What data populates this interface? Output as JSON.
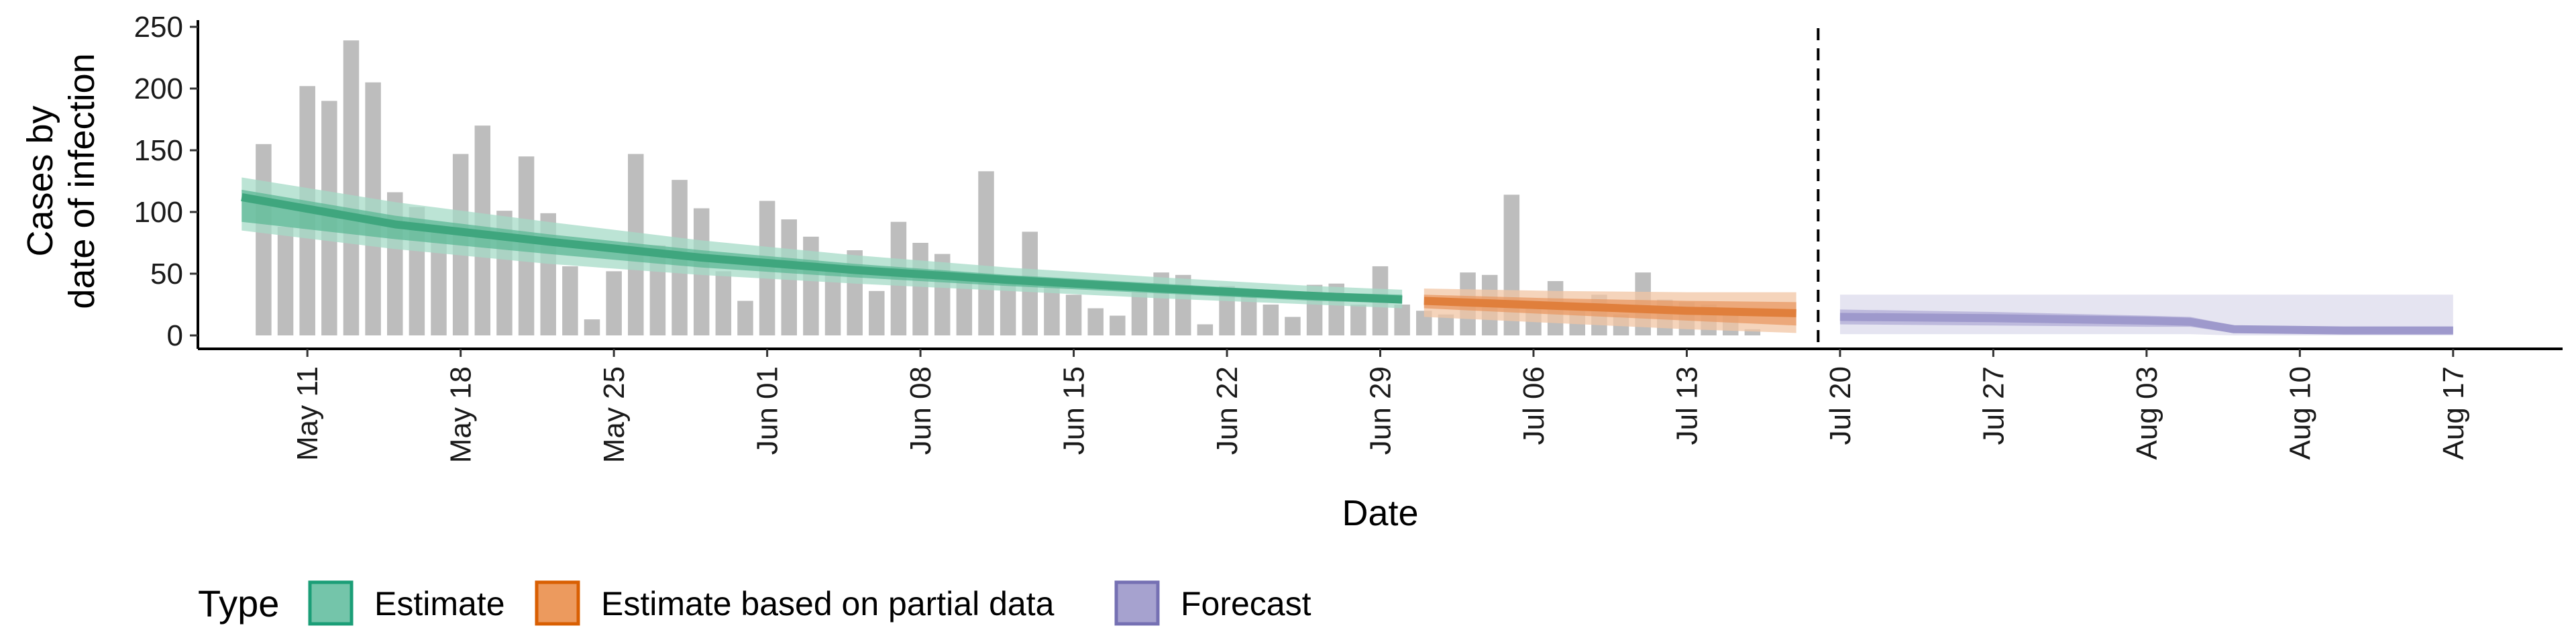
{
  "chart_data": {
    "type": "bar",
    "xlabel": "Date",
    "ylabel": [
      "Cases by",
      "date of infection"
    ],
    "ylim": [
      0,
      250
    ],
    "yticks": [
      0,
      50,
      100,
      150,
      200,
      250
    ],
    "xlim": [
      "2020-05-06",
      "2020-08-22"
    ],
    "xticks": [
      {
        "date": "2020-05-11",
        "label": "May 11"
      },
      {
        "date": "2020-05-18",
        "label": "May 18"
      },
      {
        "date": "2020-05-25",
        "label": "May 25"
      },
      {
        "date": "2020-06-01",
        "label": "Jun 01"
      },
      {
        "date": "2020-06-08",
        "label": "Jun 08"
      },
      {
        "date": "2020-06-15",
        "label": "Jun 15"
      },
      {
        "date": "2020-06-22",
        "label": "Jun 22"
      },
      {
        "date": "2020-06-29",
        "label": "Jun 29"
      },
      {
        "date": "2020-07-06",
        "label": "Jul 06"
      },
      {
        "date": "2020-07-13",
        "label": "Jul 13"
      },
      {
        "date": "2020-07-20",
        "label": "Jul 20"
      },
      {
        "date": "2020-07-27",
        "label": "Jul 27"
      },
      {
        "date": "2020-08-03",
        "label": "Aug 03"
      },
      {
        "date": "2020-08-10",
        "label": "Aug 10"
      },
      {
        "date": "2020-08-17",
        "label": "Aug 17"
      }
    ],
    "vline_date": "2020-07-19",
    "bars": {
      "start_date": "2020-05-09",
      "color": "#bdbdbd",
      "values": [
        155,
        88,
        202,
        190,
        239,
        205,
        116,
        104,
        83,
        147,
        170,
        101,
        145,
        99,
        56,
        13,
        52,
        147,
        73,
        126,
        103,
        52,
        28,
        109,
        94,
        80,
        56,
        69,
        36,
        92,
        75,
        66,
        50,
        133,
        48,
        84,
        40,
        33,
        22,
        16,
        35,
        51,
        49,
        9,
        40,
        32,
        25,
        15,
        41,
        42,
        25,
        56,
        25,
        20,
        17,
        51,
        49,
        114,
        28,
        44,
        20,
        33,
        17,
        51,
        29,
        27,
        25,
        18,
        5
      ]
    },
    "series": [
      {
        "name": "Estimate",
        "color": "#1b9e77",
        "legend_fill": "#74c5aa",
        "band_colors": [
          "#a6dbc7",
          "#5eb896"
        ],
        "line_color": "#3fa67e",
        "points": [
          {
            "x": "2020-05-08",
            "median": 112,
            "lo50": 92,
            "hi50": 118,
            "lo90": 85,
            "hi90": 128
          },
          {
            "x": "2020-05-15",
            "median": 90,
            "lo50": 78,
            "hi50": 97,
            "lo90": 70,
            "hi90": 108
          },
          {
            "x": "2020-05-22",
            "median": 76,
            "lo50": 66,
            "hi50": 82,
            "lo90": 58,
            "hi90": 92
          },
          {
            "x": "2020-05-29",
            "median": 63,
            "lo50": 55,
            "hi50": 69,
            "lo90": 49,
            "hi90": 77
          },
          {
            "x": "2020-06-05",
            "median": 53,
            "lo50": 47,
            "hi50": 58,
            "lo90": 42,
            "hi90": 65
          },
          {
            "x": "2020-06-12",
            "median": 45,
            "lo50": 40,
            "hi50": 49,
            "lo90": 36,
            "hi90": 55
          },
          {
            "x": "2020-06-19",
            "median": 38,
            "lo50": 34,
            "hi50": 42,
            "lo90": 30,
            "hi90": 47
          },
          {
            "x": "2020-06-26",
            "median": 32,
            "lo50": 28,
            "hi50": 35,
            "lo90": 25,
            "hi90": 40
          },
          {
            "x": "2020-06-30",
            "median": 29,
            "lo50": 26,
            "hi50": 33,
            "lo90": 22,
            "hi90": 37
          }
        ]
      },
      {
        "name": "Estimate based on partial data",
        "color": "#d95f02",
        "legend_fill": "#ec9a5e",
        "band_colors": [
          "#f2c6a4",
          "#e89a64"
        ],
        "line_color": "#e07f3c",
        "points": [
          {
            "x": "2020-07-01",
            "median": 28,
            "lo50": 22,
            "hi50": 33,
            "lo90": 15,
            "hi90": 38
          },
          {
            "x": "2020-07-07",
            "median": 24,
            "lo50": 17,
            "hi50": 30,
            "lo90": 10,
            "hi90": 36
          },
          {
            "x": "2020-07-13",
            "median": 20,
            "lo50": 12,
            "hi50": 28,
            "lo90": 5,
            "hi90": 35
          },
          {
            "x": "2020-07-18",
            "median": 18,
            "lo50": 8,
            "hi50": 27,
            "lo90": 2,
            "hi90": 35
          }
        ]
      },
      {
        "name": "Forecast",
        "color": "#7570b3",
        "legend_fill": "#a6a2cf",
        "band_colors": [
          "#dcdbec",
          "#b0acd6"
        ],
        "line_color": "#9e99cc",
        "points": [
          {
            "x": "2020-07-20",
            "median": 15,
            "lo50": 9,
            "hi50": 21,
            "lo90": 1,
            "hi90": 33
          },
          {
            "x": "2020-07-27",
            "median": 14,
            "lo50": 8,
            "hi50": 19,
            "lo90": 1,
            "hi90": 33
          },
          {
            "x": "2020-08-03",
            "median": 12,
            "lo50": 7,
            "hi50": 16,
            "lo90": 1,
            "hi90": 33
          },
          {
            "x": "2020-08-05",
            "median": 11,
            "lo50": 7,
            "hi50": 15,
            "lo90": 1,
            "hi90": 33
          },
          {
            "x": "2020-08-07",
            "median": 5,
            "lo50": 2,
            "hi50": 8,
            "lo90": 0,
            "hi90": 33
          },
          {
            "x": "2020-08-12",
            "median": 4,
            "lo50": 2,
            "hi50": 7,
            "lo90": 0,
            "hi90": 33
          },
          {
            "x": "2020-08-17",
            "median": 4,
            "lo50": 2,
            "hi50": 7,
            "lo90": 0,
            "hi90": 33
          }
        ]
      }
    ],
    "legend": {
      "title": "Type",
      "position": "bottom",
      "entries": [
        "Estimate",
        "Estimate based on partial data",
        "Forecast"
      ]
    },
    "grid": false
  }
}
